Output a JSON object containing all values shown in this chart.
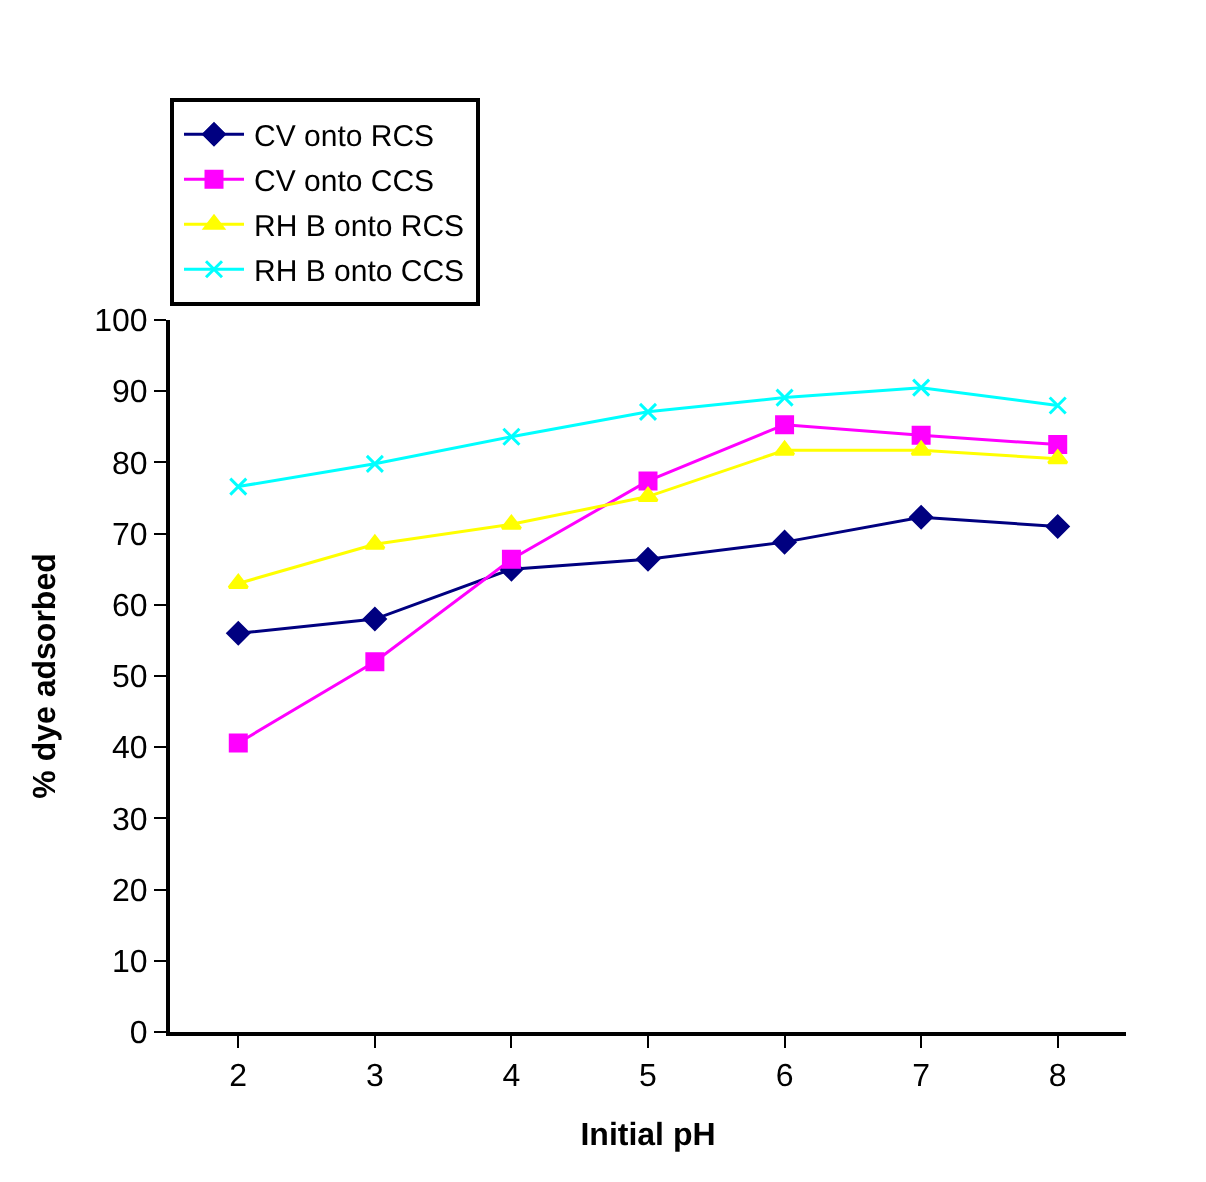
{
  "chart_data": {
    "type": "line",
    "xlabel": "Initial pH",
    "ylabel": "% dye adsorbed",
    "categories": [
      "2",
      "3",
      "4",
      "5",
      "6",
      "7",
      "8"
    ],
    "series": [
      {
        "name": "CV onto RCS",
        "color": "#000080",
        "marker": "diamond",
        "values": [
          56,
          58,
          65,
          66.4,
          68.8,
          72.3,
          71
        ]
      },
      {
        "name": "CV onto CCS",
        "color": "#ff00ff",
        "marker": "square",
        "values": [
          40.6,
          52,
          66.4,
          77.4,
          85.3,
          83.8,
          82.5
        ]
      },
      {
        "name": "RH B onto RCS",
        "color": "#ffff00",
        "marker": "triangle",
        "values": [
          63,
          68.5,
          71.3,
          75.2,
          81.7,
          81.7,
          80.5
        ]
      },
      {
        "name": "RH B onto CCS",
        "color": "#00ffff",
        "marker": "cross",
        "values": [
          76.6,
          79.8,
          83.6,
          87.1,
          89.1,
          90.5,
          88
        ]
      }
    ],
    "ylim": [
      0,
      100
    ],
    "yticks": [
      0,
      10,
      20,
      30,
      40,
      50,
      60,
      70,
      80,
      90,
      100
    ],
    "legend": "top left",
    "line_style": "solid"
  }
}
